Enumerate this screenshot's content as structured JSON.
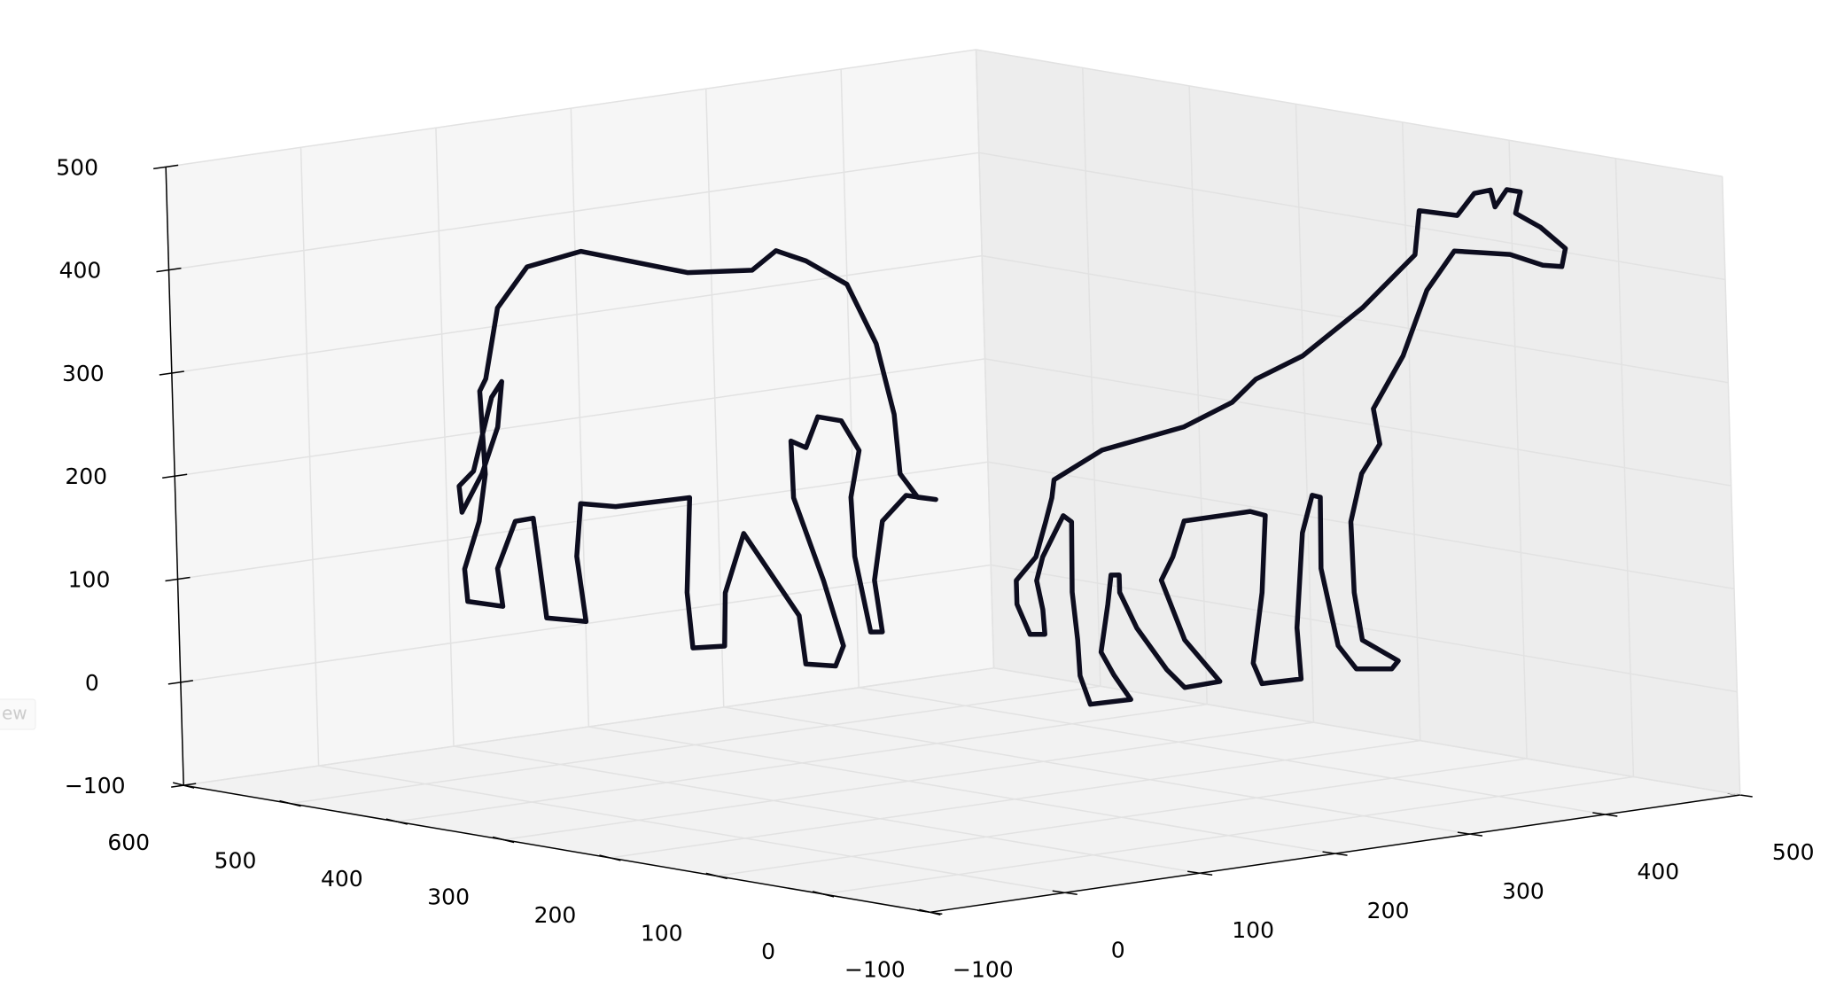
{
  "overlay_button": "ew",
  "chart_data": {
    "type": "line3d",
    "xlim": [
      -100,
      500
    ],
    "ylim": [
      -100,
      600
    ],
    "zlim": [
      -100,
      500
    ],
    "xticks": [
      {
        "value": -100,
        "label": "−100"
      },
      0,
      100,
      200,
      300,
      400,
      500
    ],
    "yticks": [
      {
        "value": -100,
        "label": "−100"
      },
      0,
      100,
      200,
      300,
      400,
      500,
      600
    ],
    "zticks": [
      {
        "value": -100,
        "label": "−100"
      },
      0,
      100,
      200,
      300,
      400,
      500
    ],
    "grid": true,
    "series": [
      {
        "color": "#0d0d1f",
        "x": 0,
        "y": [
          432,
          419,
          390,
          339,
          239,
          178,
          155,
          127,
          89,
          63,
          48,
          44,
          28,
          11,
          39,
          62,
          71,
          65,
          76,
          89,
          91,
          82,
          98,
          120,
          132,
          146,
          145,
          119,
          102,
          110,
          138,
          143,
          193,
          212,
          214,
          244,
          248,
          243,
          313,
          346,
          351,
          344,
          381,
          387,
          391,
          408,
          426,
          422,
          455,
          457,
          442,
          435,
          438,
          432,
          null,
          458,
          460,
          446,
          427,
          417,
          422,
          438,
          458
        ],
        "z": [
          305,
          376,
          421,
          445,
          442,
          455,
          478,
          473,
          457,
          404,
          338,
          281,
          261,
          262,
          261,
          232,
          173,
          124,
          122,
          193,
          250,
          297,
          323,
          323,
          291,
          295,
          240,
          164,
          104,
          83,
          80,
          126,
          197,
          136,
          84,
          77,
          130,
          223,
          202,
          199,
          147,
          85,
          82,
          140,
          177,
          171,
          122,
          86,
          85,
          116,
          165,
          212,
          292,
          305,
          null,
          171,
          196,
          213,
          288,
          305,
          260,
          212,
          171
        ]
      },
      {
        "color": "#0d0d1f",
        "y": 0,
        "x": [
          79,
          115,
          176,
          212,
          230,
          265,
          310,
          350,
          354,
          382,
          395,
          407,
          410,
          419,
          429,
          425,
          443,
          461,
          458,
          444,
          420,
          398,
          379,
          358,
          339,
          316,
          320,
          306,
          297,
          298,
          303,
          329,
          324,
          298,
          285,
          274,
          275,
          269,
          261,
          255,
          257,
          228,
          222,
          230,
          234,
          223,
          174,
          165,
          156,
          172,
          197,
          171,
          158,
          137,
          125,
          125,
          119,
          116,
          110,
          119,
          131,
          101,
          94,
          93,
          90,
          91,
          85,
          78,
          69,
          64,
          68,
          69,
          58,
          49,
          49,
          64,
          72,
          77,
          79
        ],
        "z": [
          268,
          290,
          301,
          318,
          337,
          353,
          391,
          435,
          477,
          467,
          486,
          487,
          470,
          485,
          481,
          461,
          444,
          420,
          403,
          407,
          422,
          428,
          433,
          399,
          339,
          292,
          257,
          231,
          186,
          117,
          70,
          45,
          38,
          43,
          68,
          145,
          214,
          217,
          182,
          91,
          41,
          42,
          63,
          130,
          204,
          210,
          210,
          177,
          156,
          95,
          50,
          49,
          69,
          113,
          150,
          167,
          168,
          140,
          95,
          71,
          45,
          46,
          75,
          110,
          157,
          225,
          232,
          216,
          195,
          173,
          144,
          120,
          122,
          153,
          176,
          196,
          229,
          251,
          268
        ]
      }
    ]
  }
}
